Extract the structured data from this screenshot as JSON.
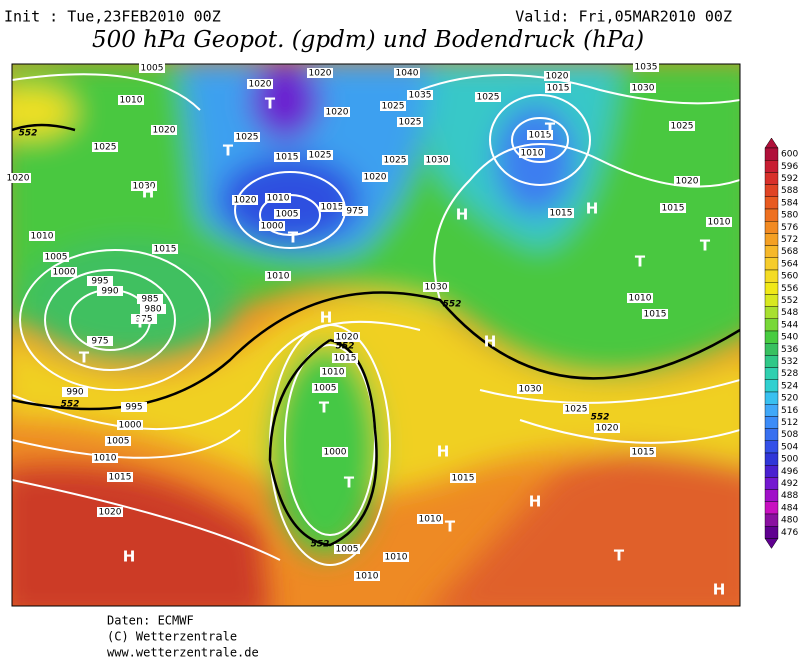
{
  "header": {
    "init": "Init : Tue,23FEB2010 00Z",
    "valid": "Valid: Fri,05MAR2010 00Z",
    "title": "500 hPa Geopot. (gpdm) und Bodendruck (hPa)"
  },
  "map": {
    "isobar_labels": [
      1005,
      1010,
      1020,
      1025,
      1030,
      1020,
      1010,
      1005,
      1000,
      995,
      990,
      985,
      980,
      975,
      975,
      1015,
      1020,
      1020,
      1025,
      1015,
      1025,
      1020,
      1010,
      1005,
      1000,
      1015,
      975,
      1020,
      1020,
      1025,
      1025,
      1025,
      1035,
      1040,
      1030,
      1010,
      1030,
      1020,
      1015,
      1010,
      1005,
      1000,
      1020,
      1015,
      1025,
      1015,
      1010,
      1015,
      1035,
      1030,
      1025,
      1020,
      1015,
      1010,
      1010,
      1015,
      1030,
      1025,
      1020,
      1015,
      990,
      995,
      1000,
      1005,
      1010,
      1015,
      1020,
      1015,
      1010,
      1005,
      1010,
      1010
    ],
    "contour_labels": [
      552,
      552,
      552,
      552,
      552,
      552
    ],
    "pressure_centers": [
      "T",
      "T",
      "H",
      "T",
      "T",
      "T",
      "H",
      "T",
      "T",
      "H",
      "T",
      "H",
      "T",
      "T",
      "H",
      "H",
      "T",
      "H",
      "T",
      "H",
      "H"
    ]
  },
  "colorbar": {
    "ticks": [
      600,
      596,
      592,
      588,
      584,
      580,
      576,
      572,
      568,
      564,
      560,
      556,
      552,
      548,
      544,
      540,
      536,
      532,
      528,
      524,
      520,
      516,
      512,
      508,
      504,
      500,
      496,
      492,
      488,
      484,
      480,
      476
    ],
    "colors": [
      "#b0103a",
      "#c81e32",
      "#d8302a",
      "#e04424",
      "#e85a20",
      "#ee7020",
      "#f28a22",
      "#f4a024",
      "#f6b82a",
      "#f6cc2c",
      "#f4dc24",
      "#f0e818",
      "#d8e820",
      "#a8e030",
      "#78d838",
      "#48cc40",
      "#38c060",
      "#30c888",
      "#30d0b0",
      "#30d0d0",
      "#38c0f0",
      "#40a8f8",
      "#3c8cf8",
      "#3870f0",
      "#3450e8",
      "#3036d8",
      "#4a20d0",
      "#7418d0",
      "#a010c8",
      "#c810c0",
      "#8a10a0",
      "#600090"
    ]
  },
  "footer": {
    "source": "Daten: ECMWF",
    "copyright": "(C) Wetterzentrale",
    "url": "www.wetterzentrale.de"
  }
}
